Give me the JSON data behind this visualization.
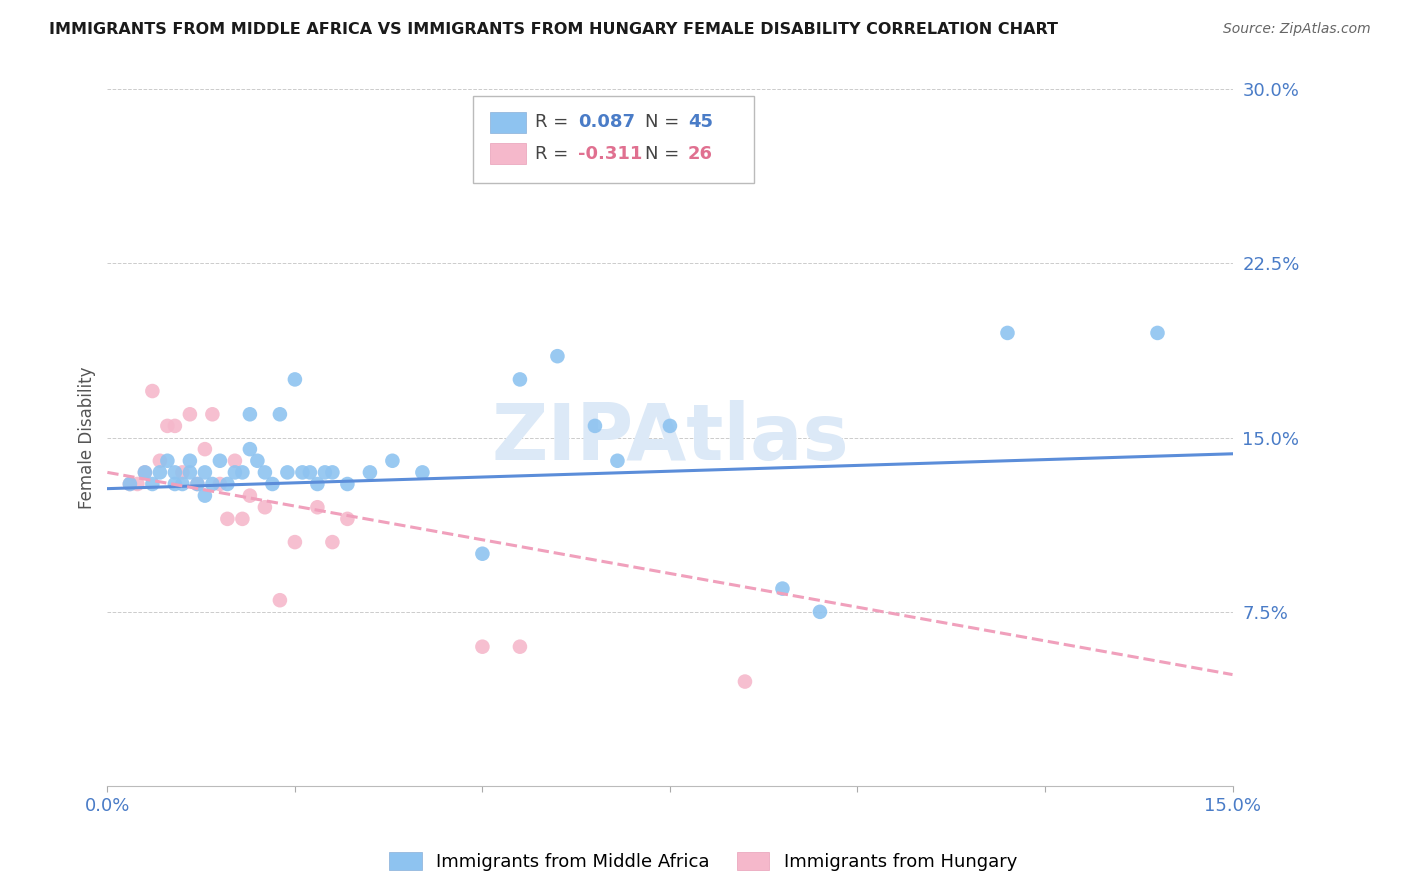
{
  "title": "IMMIGRANTS FROM MIDDLE AFRICA VS IMMIGRANTS FROM HUNGARY FEMALE DISABILITY CORRELATION CHART",
  "source": "Source: ZipAtlas.com",
  "ylabel": "Female Disability",
  "xlim": [
    0.0,
    0.15
  ],
  "ylim": [
    0.0,
    0.3
  ],
  "xticks": [
    0.0,
    0.025,
    0.05,
    0.075,
    0.1,
    0.125,
    0.15
  ],
  "xticklabels": [
    "0.0%",
    "",
    "",
    "",
    "",
    "",
    "15.0%"
  ],
  "yticks": [
    0.0,
    0.075,
    0.15,
    0.225,
    0.3
  ],
  "yticklabels": [
    "",
    "7.5%",
    "15.0%",
    "22.5%",
    "30.0%"
  ],
  "blue_color": "#8ec3f0",
  "pink_color": "#f5b8cb",
  "trend_blue_color": "#5b8dd9",
  "trend_pink_color": "#f0a0bc",
  "watermark_color": "#dce9f7",
  "blue_scatter_x": [
    0.003,
    0.005,
    0.006,
    0.007,
    0.008,
    0.009,
    0.009,
    0.01,
    0.011,
    0.011,
    0.012,
    0.013,
    0.013,
    0.014,
    0.015,
    0.016,
    0.017,
    0.018,
    0.019,
    0.019,
    0.02,
    0.021,
    0.022,
    0.023,
    0.024,
    0.025,
    0.026,
    0.027,
    0.028,
    0.029,
    0.03,
    0.032,
    0.035,
    0.038,
    0.042,
    0.05,
    0.055,
    0.06,
    0.065,
    0.068,
    0.075,
    0.09,
    0.095,
    0.12,
    0.14
  ],
  "blue_scatter_y": [
    0.13,
    0.135,
    0.13,
    0.135,
    0.14,
    0.13,
    0.135,
    0.13,
    0.135,
    0.14,
    0.13,
    0.125,
    0.135,
    0.13,
    0.14,
    0.13,
    0.135,
    0.135,
    0.16,
    0.145,
    0.14,
    0.135,
    0.13,
    0.16,
    0.135,
    0.175,
    0.135,
    0.135,
    0.13,
    0.135,
    0.135,
    0.13,
    0.135,
    0.14,
    0.135,
    0.1,
    0.175,
    0.185,
    0.155,
    0.14,
    0.155,
    0.085,
    0.075,
    0.195,
    0.195
  ],
  "pink_scatter_x": [
    0.003,
    0.004,
    0.005,
    0.006,
    0.007,
    0.008,
    0.009,
    0.01,
    0.011,
    0.012,
    0.013,
    0.014,
    0.015,
    0.016,
    0.017,
    0.018,
    0.019,
    0.021,
    0.023,
    0.025,
    0.028,
    0.03,
    0.032,
    0.05,
    0.055,
    0.085
  ],
  "pink_scatter_y": [
    0.13,
    0.13,
    0.135,
    0.17,
    0.14,
    0.155,
    0.155,
    0.135,
    0.16,
    0.13,
    0.145,
    0.16,
    0.13,
    0.115,
    0.14,
    0.115,
    0.125,
    0.12,
    0.08,
    0.105,
    0.12,
    0.105,
    0.115,
    0.06,
    0.06,
    0.045
  ],
  "blue_trend_x": [
    0.0,
    0.15
  ],
  "blue_trend_y_start": 0.128,
  "blue_trend_y_end": 0.143,
  "pink_trend_x": [
    0.0,
    0.15
  ],
  "pink_trend_y_start": 0.135,
  "pink_trend_y_end": 0.048
}
